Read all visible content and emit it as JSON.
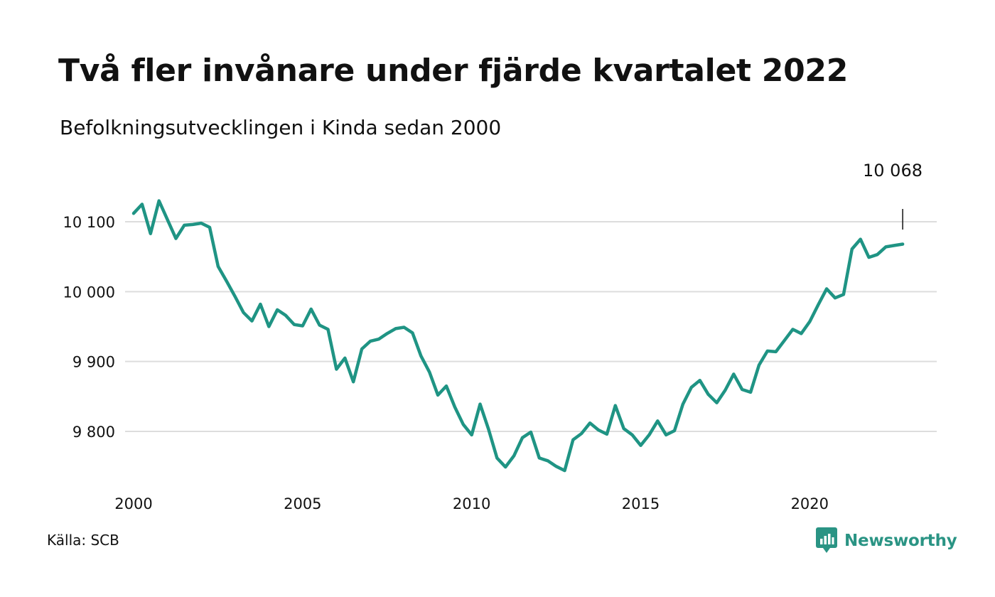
{
  "header": {
    "title": "Två fler invånare under fjärde kvartalet 2022",
    "subtitle": "Befolkningsutvecklingen i Kinda sedan 2000"
  },
  "footer": {
    "source": "Källa: SCB",
    "brand": "Newsworthy"
  },
  "colors": {
    "line": "#1f9484",
    "grid": "#dddddd",
    "brand": "#2a9484"
  },
  "chart_data": {
    "type": "line",
    "title": "Två fler invånare under fjärde kvartalet 2022",
    "subtitle": "Befolkningsutvecklingen i Kinda sedan 2000",
    "xlabel": "",
    "ylabel": "",
    "xlim": [
      2000,
      2023
    ],
    "ylim": [
      9740,
      10110
    ],
    "x_ticks": [
      2000,
      2005,
      2010,
      2015,
      2020
    ],
    "x_tick_labels": [
      "2000",
      "2005",
      "2010",
      "2015",
      "2020"
    ],
    "y_ticks": [
      9800,
      9900,
      10000,
      10100
    ],
    "y_tick_labels": [
      "9 800",
      "9 900",
      "10 000",
      "10 100"
    ],
    "grid": "horizontal",
    "annotation": {
      "x": 2022.75,
      "label": "10 068"
    },
    "series": [
      {
        "x": [
          2000.0,
          2000.25,
          2000.5,
          2000.75,
          2001.0,
          2001.25,
          2001.5,
          2001.75,
          2002.0,
          2002.25,
          2002.5,
          2002.75,
          2003.0,
          2003.25,
          2003.5,
          2003.75,
          2004.0,
          2004.25,
          2004.5,
          2004.75,
          2005.0,
          2005.25,
          2005.5,
          2005.75,
          2006.0,
          2006.25,
          2006.5,
          2006.75,
          2007.0,
          2007.25,
          2007.5,
          2007.75,
          2008.0,
          2008.25,
          2008.5,
          2008.75,
          2009.0,
          2009.25,
          2009.5,
          2009.75,
          2010.0,
          2010.25,
          2010.5,
          2010.75,
          2011.0,
          2011.25,
          2011.5,
          2011.75,
          2012.0,
          2012.25,
          2012.5,
          2012.75,
          2013.0,
          2013.25,
          2013.5,
          2013.75,
          2014.0,
          2014.25,
          2014.5,
          2014.75,
          2015.0,
          2015.25,
          2015.5,
          2015.75,
          2016.0,
          2016.25,
          2016.5,
          2016.75,
          2017.0,
          2017.25,
          2017.5,
          2017.75,
          2018.0,
          2018.25,
          2018.5,
          2018.75,
          2019.0,
          2019.25,
          2019.5,
          2019.75,
          2020.0,
          2020.25,
          2020.5,
          2020.75,
          2021.0,
          2021.25,
          2021.5,
          2021.75,
          2022.0,
          2022.25,
          2022.5,
          2022.75
        ],
        "values": [
          10112,
          10125,
          10083,
          10130,
          10103,
          10076,
          10095,
          10096,
          10098,
          10092,
          10036,
          10015,
          9993,
          9970,
          9958,
          9982,
          9950,
          9974,
          9966,
          9953,
          9951,
          9975,
          9952,
          9946,
          9889,
          9905,
          9871,
          9918,
          9929,
          9932,
          9940,
          9947,
          9949,
          9941,
          9908,
          9885,
          9852,
          9865,
          9835,
          9810,
          9795,
          9839,
          9803,
          9762,
          9749,
          9765,
          9791,
          9799,
          9762,
          9758,
          9750,
          9744,
          9788,
          9797,
          9812,
          9802,
          9796,
          9837,
          9804,
          9795,
          9780,
          9795,
          9815,
          9795,
          9801,
          9839,
          9863,
          9873,
          9853,
          9841,
          9859,
          9882,
          9860,
          9856,
          9895,
          9915,
          9914,
          9930,
          9946,
          9940,
          9957,
          9981,
          10004,
          9991,
          9996,
          10061,
          10075,
          10049,
          10053,
          10064,
          10066,
          10068
        ]
      }
    ]
  }
}
